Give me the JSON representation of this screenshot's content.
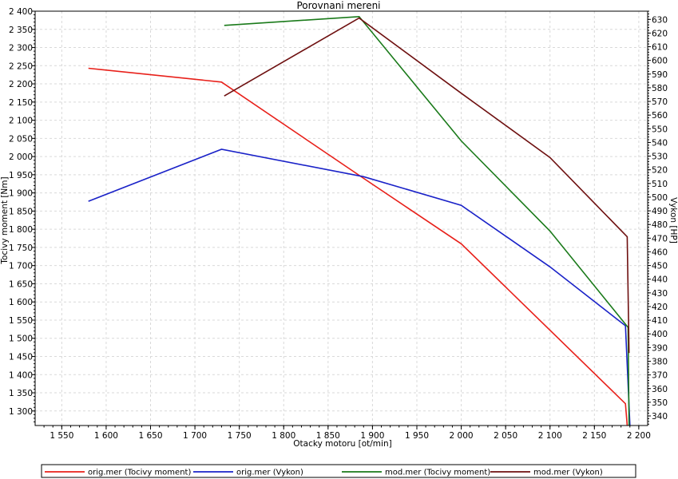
{
  "chart_data": {
    "type": "line",
    "title": "Porovnani mereni",
    "xlabel": "Otacky motoru [ot/min]",
    "ylabel": "Tocivy moment [Nm]",
    "y2label": "Vykon [HP]",
    "xlim": [
      1520,
      2210
    ],
    "ylim": [
      1260,
      2400
    ],
    "y2lim": [
      333,
      636
    ],
    "grid": true,
    "legend_position": "bottom",
    "x_ticks": [
      1550,
      1600,
      1650,
      1700,
      1750,
      1800,
      1850,
      1900,
      1950,
      2000,
      2050,
      2100,
      2150,
      2200
    ],
    "x_tick_labels": [
      "1 550",
      "1 600",
      "1 650",
      "1 700",
      "1 750",
      "1 800",
      "1 850",
      "1 900",
      "1 950",
      "2 000",
      "2 050",
      "2 100",
      "2 150",
      "2 200"
    ],
    "y_ticks": [
      1300,
      1350,
      1400,
      1450,
      1500,
      1550,
      1600,
      1650,
      1700,
      1750,
      1800,
      1850,
      1900,
      1950,
      2000,
      2050,
      2100,
      2150,
      2200,
      2250,
      2300,
      2350,
      2400
    ],
    "y_tick_labels": [
      "1 300",
      "1 350",
      "1 400",
      "1 450",
      "1 500",
      "1 550",
      "1 600",
      "1 650",
      "1 700",
      "1 750",
      "1 800",
      "1 850",
      "1 900",
      "1 950",
      "2 000",
      "2 050",
      "2 100",
      "2 150",
      "2 200",
      "2 250",
      "2 300",
      "2 350",
      "2 400"
    ],
    "y2_ticks": [
      340,
      350,
      360,
      370,
      380,
      390,
      400,
      410,
      420,
      430,
      440,
      450,
      460,
      470,
      480,
      490,
      500,
      510,
      520,
      530,
      540,
      550,
      560,
      570,
      580,
      590,
      600,
      610,
      620,
      630
    ],
    "y2_tick_labels": [
      "340",
      "350",
      "360",
      "370",
      "380",
      "390",
      "400",
      "410",
      "420",
      "430",
      "440",
      "450",
      "460",
      "470",
      "480",
      "490",
      "500",
      "510",
      "520",
      "530",
      "540",
      "550",
      "560",
      "570",
      "580",
      "590",
      "600",
      "610",
      "620",
      "630"
    ],
    "series": [
      {
        "name": "orig.mer  (Tocivy moment)",
        "axis": "left",
        "color": "#e8201a",
        "x": [
          1580,
          1730,
          1890,
          2000,
          2185,
          2187
        ],
        "y": [
          2243,
          2205,
          1940,
          1760,
          1320,
          1260
        ]
      },
      {
        "name": "orig.mer  (Vykon)",
        "axis": "right",
        "color": "#1a22c8",
        "x": [
          1580,
          1730,
          1890,
          2000,
          2100,
          2185,
          2190
        ],
        "y": [
          497,
          535,
          515,
          494,
          449,
          406,
          333
        ]
      },
      {
        "name": "mod.mer  (Tocivy moment)",
        "axis": "left",
        "color": "#1a7a1a",
        "x": [
          1733,
          1885,
          2000,
          2100,
          2188,
          2189
        ],
        "y": [
          2361,
          2385,
          2043,
          1795,
          1530,
          1260
        ]
      },
      {
        "name": "mod.mer  (Vykon)",
        "axis": "right",
        "color": "#6e1010",
        "x": [
          1733,
          1885,
          2000,
          2100,
          2187,
          2189
        ],
        "y": [
          574,
          631,
          576,
          529,
          471,
          386
        ]
      }
    ]
  }
}
